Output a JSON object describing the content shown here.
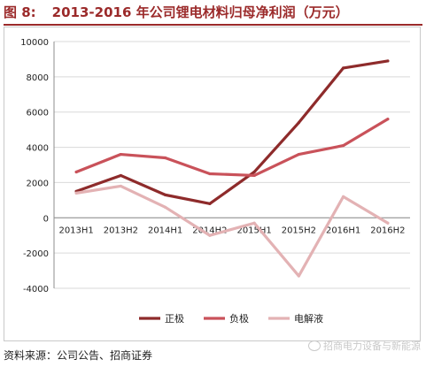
{
  "figure": {
    "number_label": "图 8:",
    "title": "2013-2016 年公司锂电材料归母净利润（万元）"
  },
  "source": "资料来源：公司公告、招商证券",
  "watermark": "招商电力设备与新能源",
  "chart_data": {
    "type": "line",
    "title": "2013-2016 年公司锂电材料归母净利润（万元）",
    "xlabel": "",
    "ylabel": "",
    "categories": [
      "2013H1",
      "2013H2",
      "2014H1",
      "2014H2",
      "2015H1",
      "2015H2",
      "2016H1",
      "2016H2"
    ],
    "ylim": [
      -4000,
      10000
    ],
    "yticks": [
      -4000,
      -2000,
      0,
      2000,
      4000,
      6000,
      8000,
      10000
    ],
    "ytick_labels": [
      "-4000",
      "-2000",
      "0",
      "2000",
      "4000",
      "6000",
      "8000",
      "10000"
    ],
    "grid": true,
    "legend_position": "bottom",
    "series": [
      {
        "name": "正极",
        "color": "#8e2b2b",
        "values": [
          1500,
          2400,
          1300,
          800,
          2600,
          5400,
          8500,
          8900
        ]
      },
      {
        "name": "负极",
        "color": "#c9525a",
        "values": [
          2600,
          3600,
          3400,
          2500,
          2400,
          3600,
          4100,
          5600
        ]
      },
      {
        "name": "电解液",
        "color": "#e3b2b4",
        "values": [
          1400,
          1800,
          600,
          -1000,
          -300,
          -3300,
          1200,
          -300
        ]
      }
    ]
  }
}
